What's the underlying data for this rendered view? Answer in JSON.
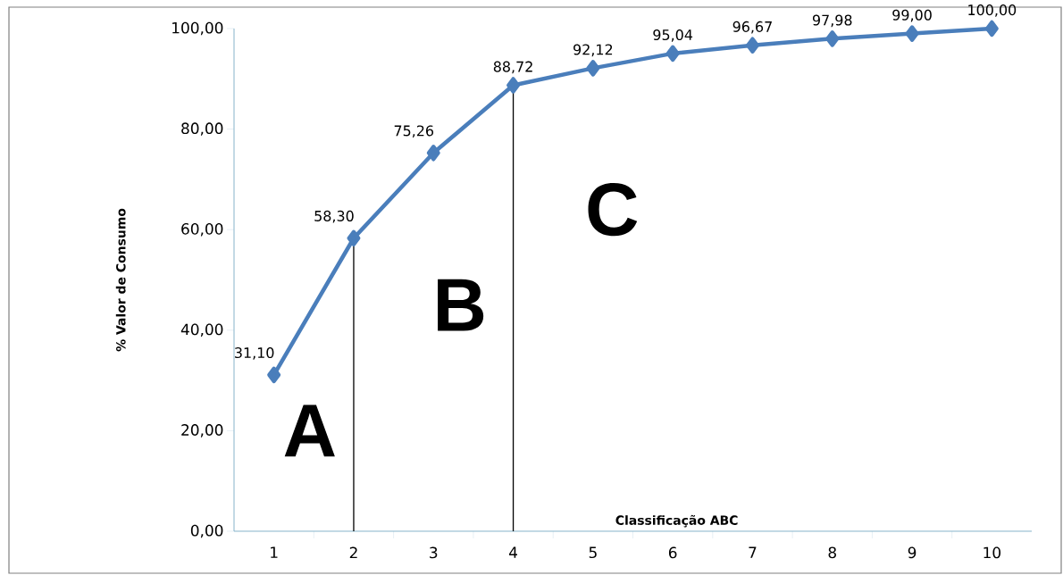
{
  "chart_data": {
    "type": "line",
    "xlabel": "Classificação ABC",
    "ylabel": "% Valor de Consumo",
    "x": [
      1,
      2,
      3,
      4,
      5,
      6,
      7,
      8,
      9,
      10
    ],
    "series": [
      {
        "color": "#4a7ebb",
        "values": [
          31.1,
          58.3,
          75.26,
          88.72,
          92.12,
          95.04,
          96.67,
          97.98,
          99.0,
          100.0
        ],
        "value_labels": [
          "31,10",
          "58,30",
          "75,26",
          "88,72",
          "92,12",
          "95,04",
          "96,67",
          "97,98",
          "99,00",
          "100,00"
        ]
      }
    ],
    "xlim": [
      0.5,
      10.5
    ],
    "xticks": [
      1,
      2,
      3,
      4,
      5,
      6,
      7,
      8,
      9,
      10
    ],
    "ylim": [
      0,
      100
    ],
    "yticks": [
      {
        "value": 0,
        "label": "0,00"
      },
      {
        "value": 20,
        "label": "20,00"
      },
      {
        "value": 40,
        "label": "40,00"
      },
      {
        "value": 60,
        "label": "60,00"
      },
      {
        "value": 80,
        "label": "80,00"
      },
      {
        "value": 100,
        "label": "100,00"
      }
    ],
    "ref_lines": [
      {
        "axis": "x",
        "value": 2,
        "color": "#000000"
      },
      {
        "axis": "x",
        "value": 4,
        "color": "#000000"
      }
    ],
    "annotations": [
      "A",
      "B",
      "C"
    ],
    "marker": "diamond",
    "line_style": "solid",
    "grid": false
  }
}
